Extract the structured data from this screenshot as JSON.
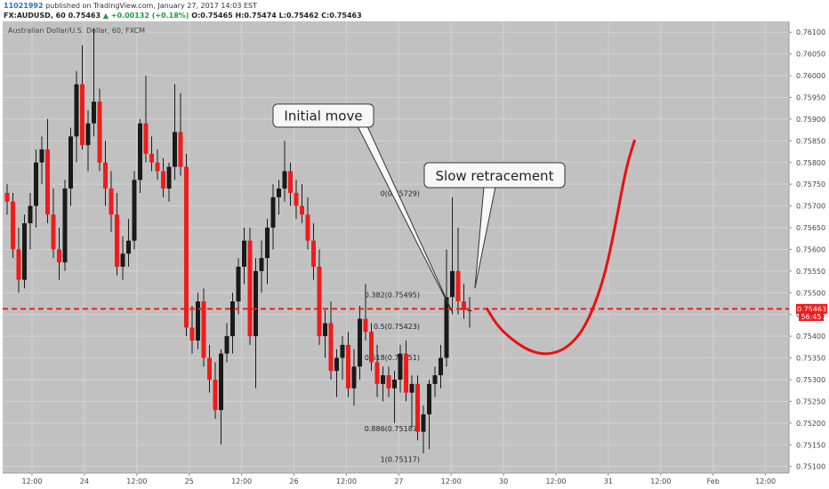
{
  "header": {
    "user": "11021992",
    "published": "published on TradingView.com, January 27, 2017 14:03 EST",
    "symbol": "FX:AUDUSD, 60",
    "last": "0.75463",
    "change": "+0.00132 (+0.18%)",
    "open_label": "O:",
    "open": "0.75465",
    "high_label": "H:",
    "high": "0.75474",
    "low_label": "L:",
    "low": "0.75462",
    "close_label": "C:",
    "close": "0.75463"
  },
  "chart_data": {
    "type": "candlestick",
    "title": "Australian Dollar/U.S. Dollar, 60, FXCM",
    "ylim": [
      0.75085,
      0.76125
    ],
    "y_ticks": [
      "0.76100",
      "0.76050",
      "0.76000",
      "0.75950",
      "0.75900",
      "0.75850",
      "0.75800",
      "0.75750",
      "0.75700",
      "0.75650",
      "0.75600",
      "0.75550",
      "0.75500",
      "0.75450",
      "0.75400",
      "0.75350",
      "0.75300",
      "0.75250",
      "0.75200",
      "0.75150",
      "0.75100"
    ],
    "x_ticks": [
      "12:00",
      "24",
      "12:00",
      "25",
      "12:00",
      "26",
      "12:00",
      "27",
      "12:00",
      "30",
      "12:00",
      "31",
      "12:00",
      "Feb",
      "12:00"
    ],
    "bull_color": "#1a1a1a",
    "bear_color": "#ef1c1c",
    "candles": [
      [
        0.7573,
        0.7575,
        0.7568,
        0.7571
      ],
      [
        0.7571,
        0.7573,
        0.7558,
        0.756
      ],
      [
        0.756,
        0.7565,
        0.755,
        0.7553
      ],
      [
        0.7553,
        0.7568,
        0.7551,
        0.7566
      ],
      [
        0.7566,
        0.7573,
        0.756,
        0.757
      ],
      [
        0.757,
        0.7583,
        0.7565,
        0.758
      ],
      [
        0.758,
        0.7586,
        0.7575,
        0.7583
      ],
      [
        0.7583,
        0.759,
        0.7566,
        0.7568
      ],
      [
        0.7568,
        0.7574,
        0.7558,
        0.756
      ],
      [
        0.756,
        0.7565,
        0.7553,
        0.7557
      ],
      [
        0.7557,
        0.7576,
        0.7555,
        0.7574
      ],
      [
        0.7574,
        0.7588,
        0.757,
        0.7586
      ],
      [
        0.7586,
        0.7601,
        0.758,
        0.7598
      ],
      [
        0.7598,
        0.7607,
        0.7583,
        0.7584
      ],
      [
        0.7584,
        0.7592,
        0.7578,
        0.7589
      ],
      [
        0.7589,
        0.7611,
        0.7586,
        0.7594
      ],
      [
        0.7594,
        0.7597,
        0.7578,
        0.758
      ],
      [
        0.758,
        0.7585,
        0.757,
        0.7574
      ],
      [
        0.7574,
        0.7578,
        0.7564,
        0.7568
      ],
      [
        0.7568,
        0.7573,
        0.7554,
        0.7556
      ],
      [
        0.7556,
        0.7563,
        0.7553,
        0.7559
      ],
      [
        0.7559,
        0.7567,
        0.7556,
        0.7562
      ],
      [
        0.7562,
        0.7578,
        0.756,
        0.7576
      ],
      [
        0.7576,
        0.759,
        0.7573,
        0.7589
      ],
      [
        0.7589,
        0.76,
        0.758,
        0.7582
      ],
      [
        0.7582,
        0.7586,
        0.7578,
        0.758
      ],
      [
        0.758,
        0.7583,
        0.7576,
        0.7578
      ],
      [
        0.7578,
        0.7581,
        0.7572,
        0.7574
      ],
      [
        0.7574,
        0.758,
        0.7571,
        0.7579
      ],
      [
        0.7579,
        0.7598,
        0.7576,
        0.7587
      ],
      [
        0.7587,
        0.7596,
        0.7577,
        0.7579
      ],
      [
        0.7579,
        0.7582,
        0.754,
        0.7542
      ],
      [
        0.7542,
        0.7547,
        0.7536,
        0.7539
      ],
      [
        0.7539,
        0.755,
        0.7537,
        0.7548
      ],
      [
        0.7548,
        0.7551,
        0.7533,
        0.7535
      ],
      [
        0.7535,
        0.7538,
        0.7527,
        0.753
      ],
      [
        0.753,
        0.7534,
        0.7521,
        0.7523
      ],
      [
        0.7523,
        0.7537,
        0.7515,
        0.7536
      ],
      [
        0.7536,
        0.7543,
        0.7534,
        0.754
      ],
      [
        0.754,
        0.755,
        0.7536,
        0.7548
      ],
      [
        0.7548,
        0.7558,
        0.7545,
        0.7556
      ],
      [
        0.7556,
        0.7565,
        0.7552,
        0.7562
      ],
      [
        0.7562,
        0.7565,
        0.7538,
        0.754
      ],
      [
        0.754,
        0.7558,
        0.7528,
        0.7555
      ],
      [
        0.7555,
        0.7562,
        0.755,
        0.7558
      ],
      [
        0.7558,
        0.7567,
        0.7552,
        0.7565
      ],
      [
        0.7565,
        0.7575,
        0.756,
        0.7572
      ],
      [
        0.7572,
        0.7576,
        0.7568,
        0.7574
      ],
      [
        0.7574,
        0.7585,
        0.7571,
        0.7578
      ],
      [
        0.7578,
        0.758,
        0.757,
        0.7573
      ],
      [
        0.7573,
        0.7576,
        0.7567,
        0.757
      ],
      [
        0.757,
        0.7575,
        0.7566,
        0.7568
      ],
      [
        0.7568,
        0.7572,
        0.756,
        0.7562
      ],
      [
        0.7562,
        0.7566,
        0.7553,
        0.7556
      ],
      [
        0.7556,
        0.756,
        0.7538,
        0.754
      ],
      [
        0.754,
        0.7546,
        0.7535,
        0.7543
      ],
      [
        0.7543,
        0.7548,
        0.753,
        0.7532
      ],
      [
        0.7532,
        0.7537,
        0.7526,
        0.7535
      ],
      [
        0.7535,
        0.754,
        0.753,
        0.7538
      ],
      [
        0.7538,
        0.7541,
        0.7526,
        0.7528
      ],
      [
        0.7528,
        0.7537,
        0.7524,
        0.7533
      ],
      [
        0.7533,
        0.7547,
        0.753,
        0.7544
      ],
      [
        0.7544,
        0.7552,
        0.7539,
        0.7541
      ],
      [
        0.7541,
        0.7543,
        0.7532,
        0.7534
      ],
      [
        0.7534,
        0.7538,
        0.7526,
        0.7529
      ],
      [
        0.7529,
        0.7533,
        0.7525,
        0.7531
      ],
      [
        0.7531,
        0.7533,
        0.7526,
        0.7528
      ],
      [
        0.7528,
        0.7532,
        0.752,
        0.753
      ],
      [
        0.753,
        0.7538,
        0.7527,
        0.7536
      ],
      [
        0.7536,
        0.7539,
        0.7525,
        0.7527
      ],
      [
        0.7527,
        0.7531,
        0.7519,
        0.7529
      ],
      [
        0.7529,
        0.7531,
        0.7516,
        0.7518
      ],
      [
        0.7518,
        0.7524,
        0.7513,
        0.7522
      ],
      [
        0.7522,
        0.753,
        0.7514,
        0.7529
      ],
      [
        0.7529,
        0.7533,
        0.7526,
        0.7531
      ],
      [
        0.7531,
        0.7538,
        0.7528,
        0.7535
      ],
      [
        0.7535,
        0.756,
        0.7533,
        0.7549
      ],
      [
        0.7549,
        0.7572,
        0.7545,
        0.7555
      ],
      [
        0.7555,
        0.7565,
        0.7545,
        0.7548
      ],
      [
        0.7548,
        0.7552,
        0.7544,
        0.7546
      ],
      [
        0.7546,
        0.7549,
        0.7542,
        0.7546
      ]
    ],
    "fib_levels": [
      {
        "label": "0(0.75729)",
        "value": 0.75729
      },
      {
        "label": "0.382(0.75495)",
        "value": 0.75495
      },
      {
        "label": "0.5(0.75423)",
        "value": 0.75423
      },
      {
        "label": "0.618(0.75351)",
        "value": 0.75351
      },
      {
        "label": "0.886(0.75187)",
        "value": 0.75187
      },
      {
        "label": "1(0.75117)",
        "value": 0.75117
      }
    ],
    "current_price": {
      "label": "0.75463",
      "value": 0.75463,
      "color": "#ef1c1c"
    },
    "countdown": "56:45",
    "annotations": [
      {
        "text": "Initial move"
      },
      {
        "text": "Slow retracement"
      }
    ],
    "projection_color": "#e81010",
    "projection_path": [
      [
        83,
        0.75463
      ],
      [
        85,
        0.7542
      ],
      [
        88,
        0.75385
      ],
      [
        91,
        0.75362
      ],
      [
        94,
        0.75358
      ],
      [
        97,
        0.75374
      ],
      [
        100,
        0.7542
      ],
      [
        103,
        0.7552
      ],
      [
        105,
        0.7564
      ],
      [
        107,
        0.75785
      ],
      [
        108.5,
        0.7585
      ]
    ]
  }
}
